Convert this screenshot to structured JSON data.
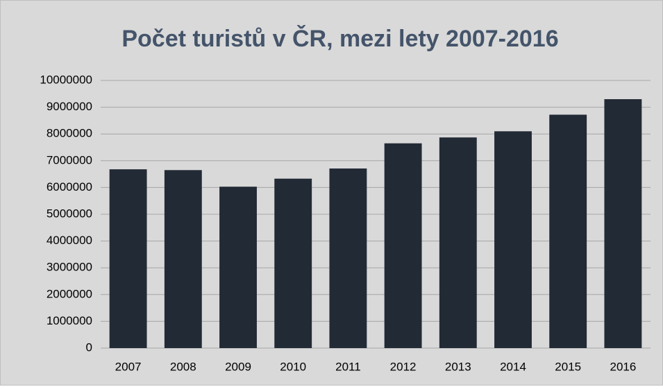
{
  "chart_data": {
    "type": "bar",
    "title": "Počet turistů v ČR, mezi lety 2007-2016",
    "categories": [
      "2007",
      "2008",
      "2009",
      "2010",
      "2011",
      "2012",
      "2013",
      "2014",
      "2015",
      "2016"
    ],
    "values": [
      6680000,
      6650000,
      6030000,
      6330000,
      6710000,
      7650000,
      7870000,
      8100000,
      8720000,
      9300000
    ],
    "color": "#222a35",
    "ylim": [
      0,
      10000000
    ],
    "yticks": [
      0,
      1000000,
      2000000,
      3000000,
      4000000,
      5000000,
      6000000,
      7000000,
      8000000,
      9000000,
      10000000
    ],
    "grid": true
  }
}
